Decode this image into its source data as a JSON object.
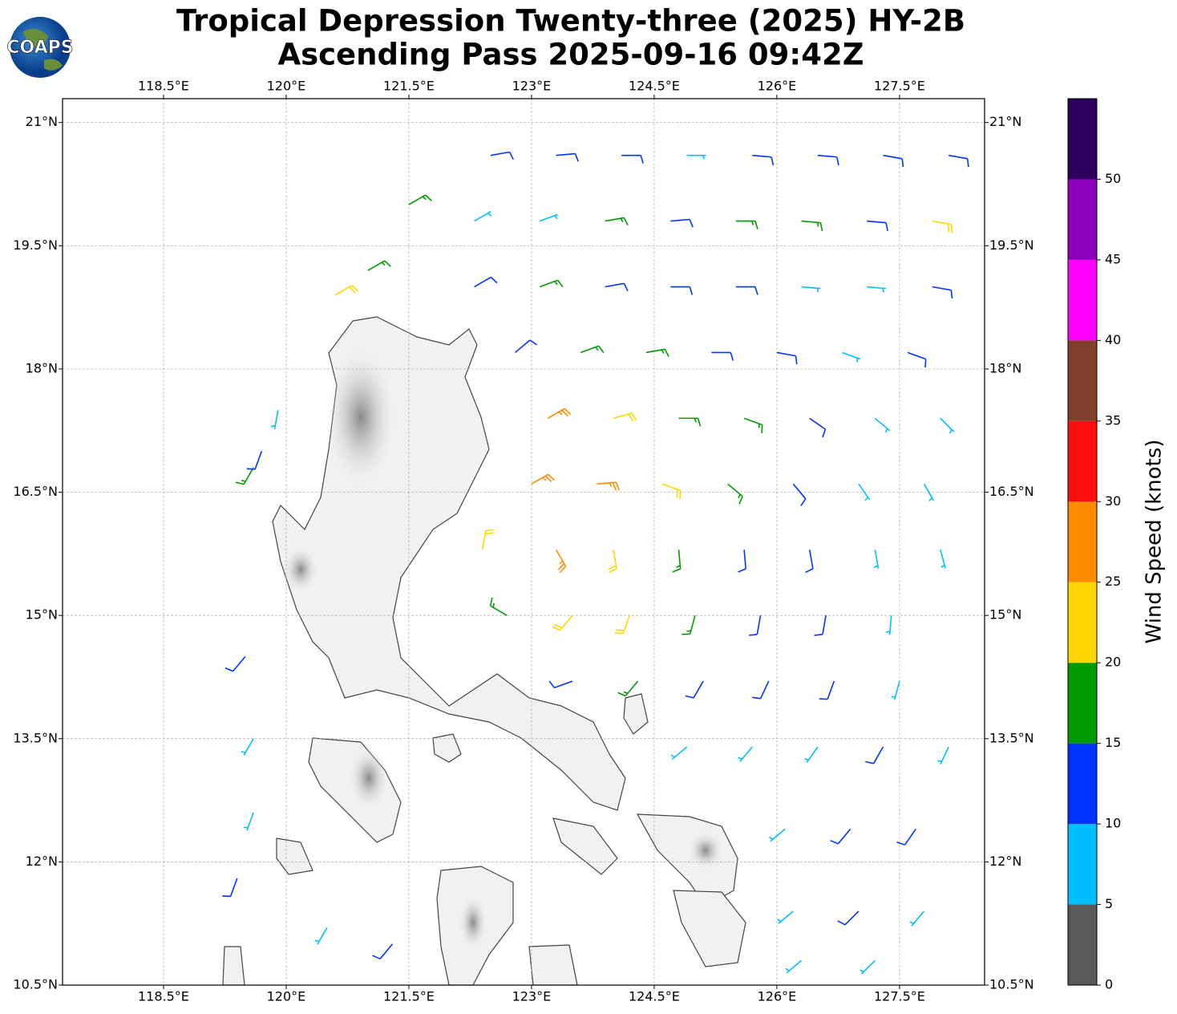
{
  "logo": "COAPS",
  "chart_data": {
    "type": "wind-barbs",
    "title": [
      "Tropical Depression Twenty-three (2025) HY-2B",
      "Ascending Pass 2025-09-16 09:42Z"
    ],
    "xlim": [
      117.265,
      128.54
    ],
    "ylim": [
      10.5,
      21.29
    ],
    "xticks": [
      {
        "value": 118.5,
        "label": "118.5°E"
      },
      {
        "value": 120,
        "label": "120°E"
      },
      {
        "value": 121.5,
        "label": "121.5°E"
      },
      {
        "value": 123,
        "label": "123°E"
      },
      {
        "value": 124.5,
        "label": "124.5°E"
      },
      {
        "value": 126,
        "label": "126°E"
      },
      {
        "value": 127.5,
        "label": "127.5°E"
      }
    ],
    "yticks": [
      {
        "value": 10.5,
        "label": "10.5°N"
      },
      {
        "value": 12,
        "label": "12°N"
      },
      {
        "value": 13.5,
        "label": "13.5°N"
      },
      {
        "value": 15,
        "label": "15°N"
      },
      {
        "value": 16.5,
        "label": "16.5°N"
      },
      {
        "value": 18,
        "label": "18°N"
      },
      {
        "value": 19.5,
        "label": "19.5°N"
      },
      {
        "value": 21,
        "label": "21°N"
      }
    ],
    "grid": true,
    "colorbar": {
      "label": "Wind Speed (knots)",
      "bounds": [
        0,
        5,
        10,
        15,
        20,
        25,
        30,
        35,
        40,
        45,
        50,
        55
      ],
      "colors": [
        "#595959",
        "#00bfff",
        "#0033ff",
        "#009900",
        "#ffd700",
        "#ff8c00",
        "#ff0d0d",
        "#7f3f2a",
        "#ff00ff",
        "#8b00bb",
        "#2e005e"
      ],
      "ticks": [
        0,
        5,
        10,
        15,
        20,
        25,
        30,
        35,
        40,
        45,
        50
      ]
    },
    "barbs": [
      [
        122.5,
        20.6,
        12,
        80
      ],
      [
        123.3,
        20.6,
        12,
        85
      ],
      [
        124.1,
        20.6,
        13,
        90
      ],
      [
        124.9,
        20.6,
        8,
        90
      ],
      [
        125.7,
        20.6,
        12,
        95
      ],
      [
        126.5,
        20.6,
        12,
        95
      ],
      [
        127.3,
        20.6,
        13,
        100
      ],
      [
        128.1,
        20.6,
        12,
        100
      ],
      [
        122.3,
        19.8,
        8,
        60
      ],
      [
        123.1,
        19.8,
        8,
        70
      ],
      [
        123.9,
        19.8,
        16,
        80
      ],
      [
        124.7,
        19.8,
        13,
        85
      ],
      [
        125.5,
        19.8,
        16,
        90
      ],
      [
        126.3,
        19.8,
        17,
        95
      ],
      [
        127.1,
        19.8,
        12,
        95
      ],
      [
        127.9,
        19.8,
        22,
        100
      ],
      [
        122.3,
        19.0,
        12,
        60
      ],
      [
        123.1,
        19.0,
        16,
        70
      ],
      [
        123.9,
        19.0,
        13,
        80
      ],
      [
        124.7,
        19.0,
        12,
        90
      ],
      [
        125.5,
        19.0,
        12,
        90
      ],
      [
        126.3,
        19.0,
        8,
        95
      ],
      [
        127.1,
        19.0,
        8,
        95
      ],
      [
        127.9,
        19.0,
        12,
        100
      ],
      [
        122.8,
        18.2,
        12,
        50
      ],
      [
        123.6,
        18.2,
        16,
        70
      ],
      [
        124.4,
        18.2,
        17,
        80
      ],
      [
        125.2,
        18.2,
        13,
        90
      ],
      [
        126.0,
        18.2,
        12,
        100
      ],
      [
        126.8,
        18.2,
        8,
        110
      ],
      [
        127.6,
        18.2,
        12,
        110
      ],
      [
        123.2,
        17.4,
        27,
        60
      ],
      [
        124.0,
        17.4,
        22,
        75
      ],
      [
        124.8,
        17.4,
        18,
        90
      ],
      [
        125.6,
        17.4,
        16,
        110
      ],
      [
        126.4,
        17.4,
        12,
        125
      ],
      [
        127.2,
        17.4,
        8,
        130
      ],
      [
        128.0,
        17.4,
        8,
        135
      ],
      [
        123.0,
        16.6,
        28,
        60
      ],
      [
        123.8,
        16.6,
        27,
        85
      ],
      [
        124.6,
        16.6,
        22,
        110
      ],
      [
        125.4,
        16.6,
        17,
        130
      ],
      [
        126.2,
        16.6,
        12,
        140
      ],
      [
        127.0,
        16.6,
        8,
        145
      ],
      [
        127.8,
        16.6,
        8,
        150
      ],
      [
        122.4,
        15.8,
        22,
        10
      ],
      [
        123.3,
        15.8,
        27,
        150
      ],
      [
        124.0,
        15.8,
        22,
        170
      ],
      [
        124.8,
        15.8,
        18,
        175
      ],
      [
        125.6,
        15.8,
        12,
        175
      ],
      [
        126.4,
        15.8,
        12,
        170
      ],
      [
        127.2,
        15.8,
        8,
        170
      ],
      [
        128.0,
        15.8,
        8,
        165
      ],
      [
        122.7,
        15.0,
        17,
        300
      ],
      [
        123.5,
        15.0,
        22,
        220
      ],
      [
        124.2,
        15.0,
        22,
        200
      ],
      [
        125.0,
        15.0,
        17,
        195
      ],
      [
        125.8,
        15.0,
        12,
        190
      ],
      [
        126.6,
        15.0,
        12,
        190
      ],
      [
        127.4,
        15.0,
        8,
        185
      ],
      [
        123.5,
        14.2,
        13,
        250
      ],
      [
        124.3,
        14.2,
        18,
        220
      ],
      [
        125.1,
        14.2,
        12,
        210
      ],
      [
        125.9,
        14.2,
        12,
        205
      ],
      [
        126.7,
        14.2,
        12,
        200
      ],
      [
        127.5,
        14.2,
        8,
        195
      ],
      [
        124.9,
        13.4,
        8,
        230
      ],
      [
        125.7,
        13.4,
        8,
        220
      ],
      [
        126.5,
        13.4,
        8,
        215
      ],
      [
        127.3,
        13.4,
        12,
        210
      ],
      [
        128.1,
        13.4,
        8,
        205
      ],
      [
        126.1,
        12.4,
        8,
        230
      ],
      [
        126.9,
        12.4,
        12,
        220
      ],
      [
        127.7,
        12.4,
        12,
        215
      ],
      [
        126.2,
        11.4,
        8,
        230
      ],
      [
        127.0,
        11.4,
        12,
        225
      ],
      [
        127.8,
        11.4,
        8,
        220
      ],
      [
        126.3,
        10.8,
        8,
        230
      ],
      [
        127.2,
        10.8,
        8,
        225
      ],
      [
        119.5,
        14.5,
        12,
        220
      ],
      [
        119.6,
        13.5,
        8,
        210
      ],
      [
        119.6,
        12.6,
        8,
        200
      ],
      [
        119.4,
        11.8,
        12,
        200
      ],
      [
        120.5,
        11.2,
        8,
        210
      ],
      [
        121.3,
        11.0,
        12,
        220
      ],
      [
        119.7,
        17.0,
        12,
        200
      ],
      [
        119.9,
        17.5,
        8,
        190
      ],
      [
        119.6,
        16.8,
        16,
        210
      ],
      [
        121.5,
        20.0,
        16,
        60
      ],
      [
        121.0,
        19.2,
        17,
        60
      ],
      [
        120.6,
        18.9,
        22,
        60
      ]
    ]
  }
}
